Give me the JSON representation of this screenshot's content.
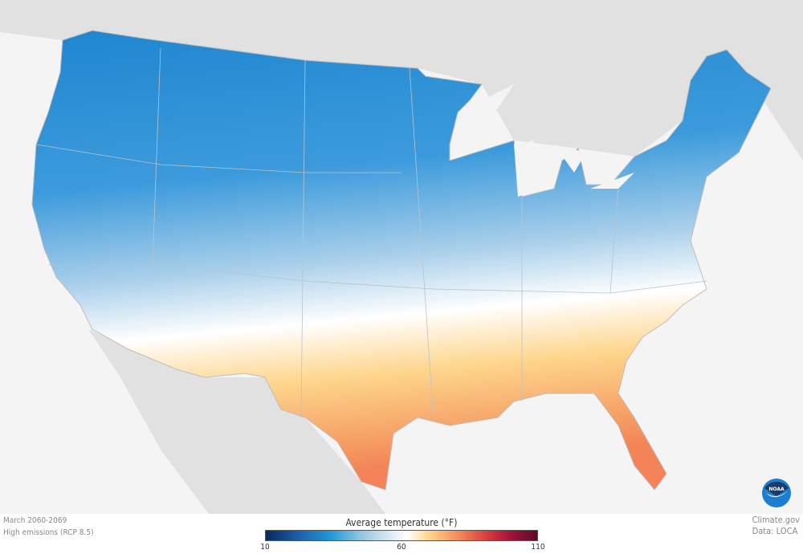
{
  "map": {
    "period": "March 2060-2069",
    "scenario": "High emissions (RCP 8.5)",
    "credit": "Climate.gov",
    "source": "Data: LOCA",
    "logo_text": "NOAA",
    "region": "Contiguous United States"
  },
  "legend": {
    "title": "Average temperature (°F)",
    "ticks": [
      "10",
      "60",
      "110"
    ],
    "min": 10,
    "max": 110,
    "colors": [
      "#062a5e",
      "#1d5ea8",
      "#1f9ad8",
      "#9cc7e4",
      "#ffffff",
      "#fed68d",
      "#f9905e",
      "#d7393a",
      "#a6123d",
      "#5a0a2a"
    ]
  }
}
